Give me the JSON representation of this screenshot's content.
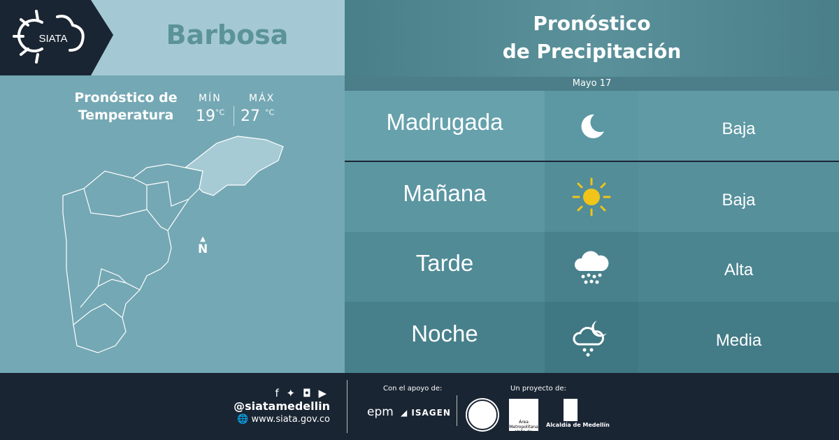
{
  "logo": {
    "text": "SIATA"
  },
  "city": "Barbosa",
  "temperature": {
    "title_line1": "Pronóstico de",
    "title_line2": "Temperatura",
    "min_label": "MÍN",
    "max_label": "MÁX",
    "min_value": "19",
    "max_value": "27",
    "unit": "°C"
  },
  "compass": "N",
  "header": {
    "title_line1": "Pronóstico",
    "title_line2": "de Precipitación",
    "date": "Mayo 17"
  },
  "rows": [
    {
      "period": "Madrugada",
      "icon": "moon-icon",
      "level": "Baja"
    },
    {
      "period": "Mañana",
      "icon": "sun-icon",
      "level": "Baja"
    },
    {
      "period": "Tarde",
      "icon": "cloud-rain-icon",
      "level": "Alta"
    },
    {
      "period": "Noche",
      "icon": "moon-cloud-rain-icon",
      "level": "Media"
    }
  ],
  "footer": {
    "handle": "@siatamedellin",
    "website": "www.siata.gov.co",
    "support_label": "Con el apoyo de:",
    "project_label": "Un proyecto de:",
    "sponsors": [
      "epm",
      "ISAGEN"
    ],
    "partners": [
      "Área Metropolitana Valle de Aburrá",
      "Alcaldía de Medellín"
    ]
  },
  "colors": {
    "dark": "#1a2533",
    "sun": "#f0c419"
  }
}
